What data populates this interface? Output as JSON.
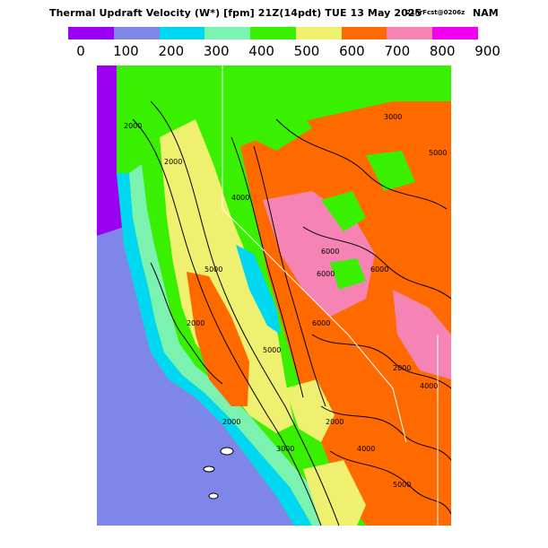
{
  "title": {
    "main": "Thermal Updraft Velocity (W*) [fpm] 21Z(14pdt) TUE 13 May 2025",
    "run": "21hrFcst@0206z",
    "model": "NAM"
  },
  "colorbar": {
    "ticks": [
      "0",
      "100",
      "200",
      "300",
      "400",
      "500",
      "600",
      "700",
      "800",
      "900"
    ],
    "colors": [
      "#9b00f0",
      "#7f86ea",
      "#00d7f0",
      "#7cf2b0",
      "#38f000",
      "#f0f070",
      "#ff6a00",
      "#f584b4",
      "#f000f0"
    ]
  },
  "map": {
    "contour_labels": [
      "2000",
      "2000",
      "4000",
      "5000",
      "5000",
      "6000",
      "6000",
      "6000",
      "6000",
      "2000",
      "2000",
      "4000",
      "2000",
      "3000",
      "4000",
      "2000",
      "3000",
      "5000",
      "5000"
    ]
  },
  "chart_data": {
    "type": "heatmap",
    "title": "Thermal Updraft Velocity (W*) [fpm] 21Z(14pdt) TUE 13 May 2025",
    "legend_bins": [
      0,
      100,
      200,
      300,
      400,
      500,
      600,
      700,
      800,
      900
    ],
    "legend_colors": [
      "#9b00f0",
      "#7f86ea",
      "#00d7f0",
      "#7cf2b0",
      "#38f000",
      "#f0f070",
      "#ff6a00",
      "#f584b4",
      "#f000f0"
    ],
    "model": "NAM",
    "forecast": "21hrFcst@0206z"
  }
}
